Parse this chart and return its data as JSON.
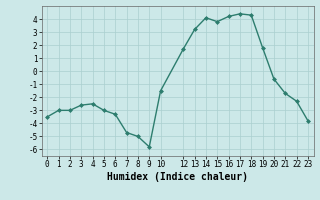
{
  "x": [
    0,
    1,
    2,
    3,
    4,
    5,
    6,
    7,
    8,
    9,
    10,
    12,
    13,
    14,
    15,
    16,
    17,
    18,
    19,
    20,
    21,
    22,
    23
  ],
  "y": [
    -3.5,
    -3.0,
    -3.0,
    -2.6,
    -2.5,
    -3.0,
    -3.3,
    -4.7,
    -5.0,
    -5.8,
    -1.5,
    1.7,
    3.2,
    4.1,
    3.8,
    4.2,
    4.4,
    4.3,
    1.8,
    -0.6,
    -1.7,
    -2.3,
    -3.8
  ],
  "line_color": "#2d7d6e",
  "marker": "D",
  "marker_size": 2.0,
  "bg_color": "#cce8e8",
  "grid_color": "#aacfcf",
  "xlabel": "Humidex (Indice chaleur)",
  "ylim": [
    -6.5,
    5.0
  ],
  "xlim": [
    -0.5,
    23.5
  ],
  "xtick_positions": [
    0,
    1,
    2,
    3,
    4,
    5,
    6,
    7,
    8,
    9,
    10,
    12,
    13,
    14,
    15,
    16,
    17,
    18,
    19,
    20,
    21,
    22,
    23
  ],
  "xtick_labels": [
    "0",
    "1",
    "2",
    "3",
    "4",
    "5",
    "6",
    "7",
    "8",
    "9",
    "10",
    "12",
    "13",
    "14",
    "15",
    "16",
    "17",
    "18",
    "19",
    "20",
    "21",
    "22",
    "23"
  ],
  "yticks": [
    -6,
    -5,
    -4,
    -3,
    -2,
    -1,
    0,
    1,
    2,
    3,
    4
  ],
  "tick_fontsize": 5.5,
  "xlabel_fontsize": 7.0,
  "line_width": 1.0
}
